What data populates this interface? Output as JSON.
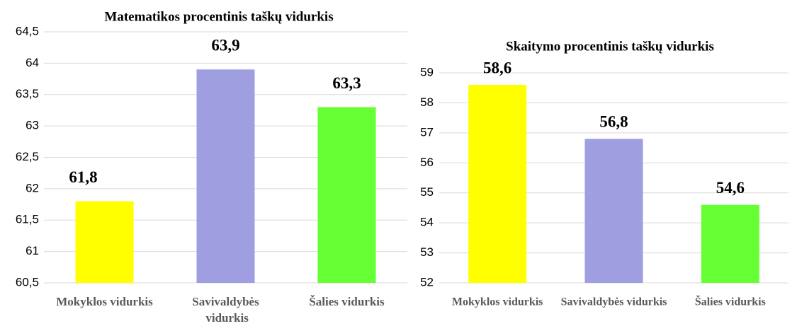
{
  "chart_data": [
    {
      "type": "bar",
      "title": "Matematikos procentinis taškų vidurkis",
      "categories": [
        "Mokyklos vidurkis",
        "Savivaldybės vidurkis",
        "Šalies vidurkis"
      ],
      "values": [
        61.8,
        63.9,
        63.3
      ],
      "value_labels": [
        "61,8",
        "63,9",
        "63,3"
      ],
      "colors": [
        "#ffff00",
        "#9e9ee0",
        "#66ff33"
      ],
      "ylim": [
        60.5,
        64.5
      ],
      "yticks": [
        {
          "value": 60.5,
          "label": "60,5"
        },
        61,
        {
          "value": 61.5,
          "label": "61,5"
        },
        62,
        {
          "value": 62.5,
          "label": "62,5"
        },
        63,
        {
          "value": 63.5,
          "label": "63,5"
        },
        64,
        {
          "value": 64.5,
          "label": "64,5"
        }
      ],
      "grid": true
    },
    {
      "type": "bar",
      "title": "Skaitymo procentinis taškų vidurkis",
      "categories": [
        "Mokyklos vidurkis",
        "Savivaldybės vidurkis",
        "Šalies vidurkis"
      ],
      "values": [
        58.6,
        56.8,
        54.6
      ],
      "value_labels": [
        "58,6",
        "56,8",
        "54,6"
      ],
      "colors": [
        "#ffff00",
        "#9e9ee0",
        "#66ff33"
      ],
      "ylim": [
        52,
        59
      ],
      "yticks": [
        52,
        53,
        54,
        55,
        56,
        57,
        58,
        59
      ],
      "grid": true
    }
  ]
}
